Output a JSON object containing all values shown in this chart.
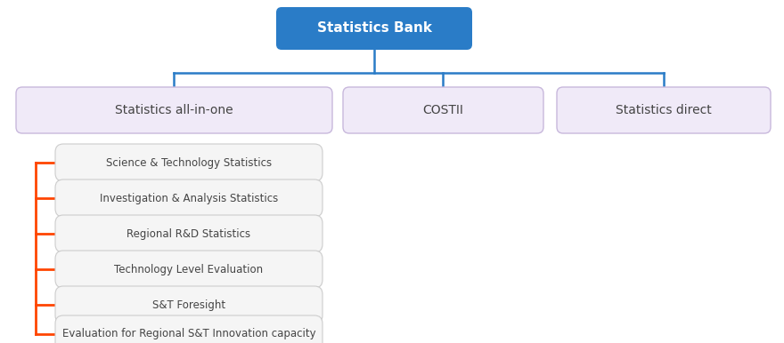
{
  "title": "Statistics Bank",
  "title_bg": "#2a7cc7",
  "title_text_color": "#ffffff",
  "level2_boxes": [
    {
      "label": "Statistics all-in-one"
    },
    {
      "label": "COSTII"
    },
    {
      "label": "Statistics direct"
    }
  ],
  "level2_bg": "#f0eaf8",
  "level2_border": "#c8b8dc",
  "level2_text_color": "#444444",
  "level3_labels": [
    "Science & Technology Statistics",
    "Investigation & Analysis Statistics",
    "Regional R&D Statistics",
    "Technology Level Evaluation",
    "S&T Foresight",
    "Evaluation for Regional S&T Innovation capacity"
  ],
  "level3_bg": "#f5f5f5",
  "level3_border": "#cccccc",
  "level3_text_color": "#444444",
  "connector_color": "#2a7cc7",
  "branch_line_color": "#ff4500",
  "fig_bg": "#ffffff",
  "fig_w": 8.8,
  "fig_h": 3.86,
  "dpi": 100
}
